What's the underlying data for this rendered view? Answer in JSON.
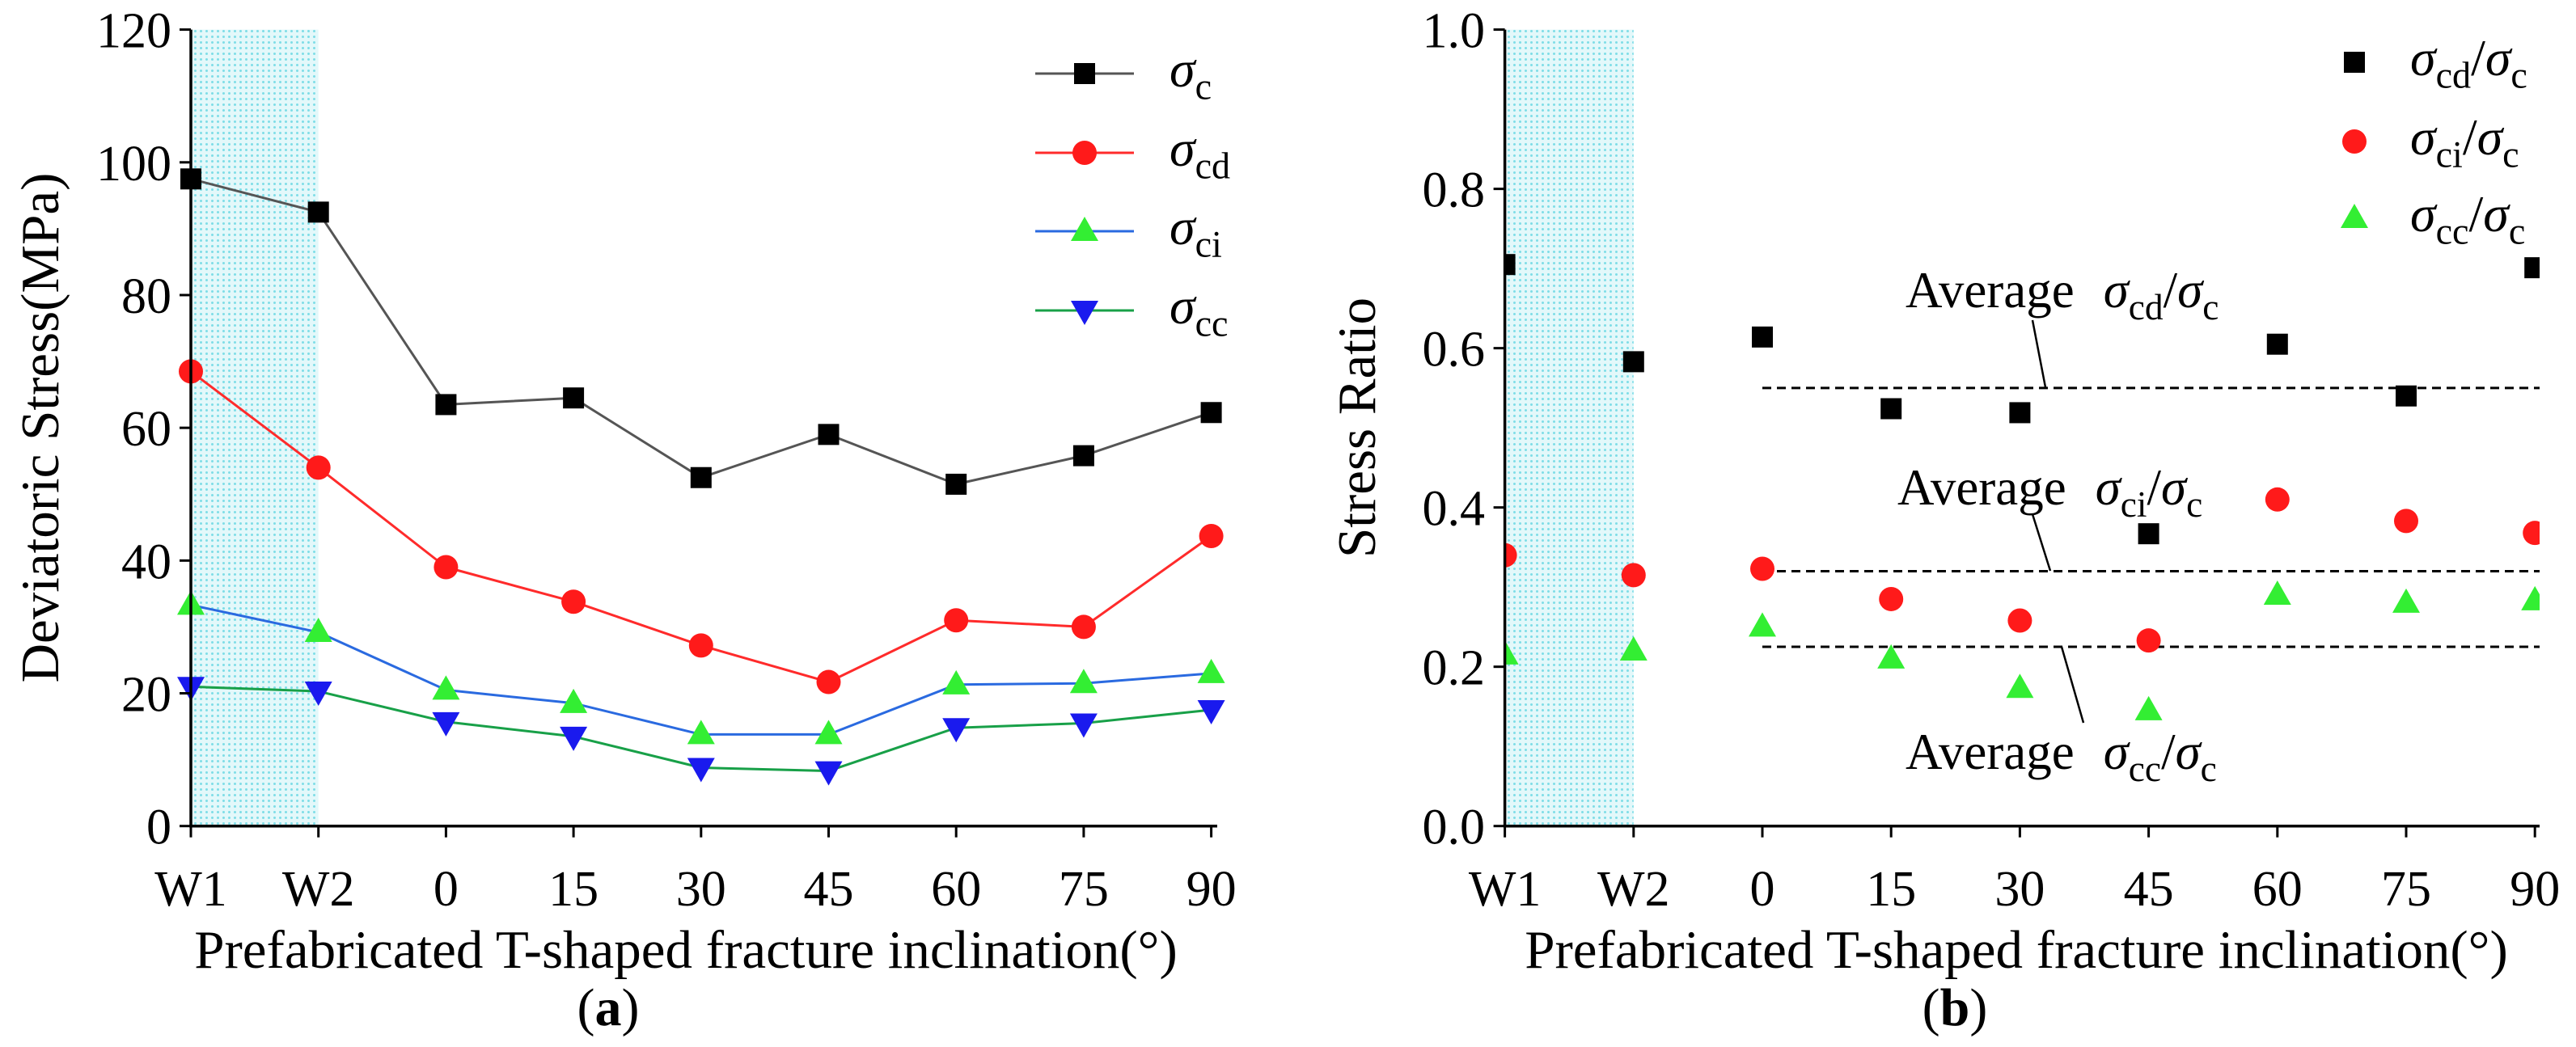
{
  "figure": {
    "background": "#ffffff",
    "axis_color": "#000000",
    "shade_fill": "#e3f8fa",
    "shade_dots": "#7edde7"
  },
  "chart_data": [
    {
      "type": "line",
      "panel_label": {
        "open": "(",
        "letter": "a",
        "close": ")"
      },
      "xlabel": "Prefabricated T-shaped fracture inclination(°)",
      "ylabel": "Deviatoric Stress(MPa)",
      "categories": [
        "W1",
        "W2",
        "0",
        "15",
        "30",
        "45",
        "60",
        "75",
        "90"
      ],
      "ylim": [
        0,
        120
      ],
      "yticks": [
        "0",
        "20",
        "40",
        "60",
        "80",
        "100",
        "120"
      ],
      "shaded_first_n_categories": 2,
      "grid": false,
      "legend_position": "top-right",
      "series": [
        {
          "symbol": "σ",
          "sub": "c",
          "marker": "square",
          "marker_color": "#000000",
          "line_color": "#555555",
          "values": [
            97.5,
            92.5,
            63.5,
            64.5,
            52.5,
            59.0,
            51.5,
            55.8,
            62.3
          ]
        },
        {
          "symbol": "σ",
          "sub": "cd",
          "marker": "circle",
          "marker_color": "#ff1a1a",
          "line_color": "#ff2b2b",
          "values": [
            68.5,
            54.0,
            39.0,
            33.8,
            27.2,
            21.7,
            31.0,
            30.0,
            43.7
          ]
        },
        {
          "symbol": "σ",
          "sub": "ci",
          "marker": "triangle-up",
          "marker_color": "#33ee33",
          "line_color": "#2a6ae0",
          "values": [
            33.3,
            29.2,
            20.5,
            18.5,
            13.8,
            13.8,
            21.3,
            21.5,
            23.0
          ]
        },
        {
          "symbol": "σ",
          "sub": "cc",
          "marker": "triangle-down",
          "marker_color": "#1a1aee",
          "line_color": "#18a048",
          "values": [
            21.0,
            20.3,
            15.7,
            13.5,
            8.8,
            8.3,
            14.8,
            15.5,
            17.5
          ]
        }
      ]
    },
    {
      "type": "scatter",
      "panel_label": {
        "open": "(",
        "letter": "b",
        "close": ")"
      },
      "xlabel": "Prefabricated T-shaped fracture inclination(°)",
      "ylabel": "Stress Ratio",
      "categories": [
        "W1",
        "W2",
        "0",
        "15",
        "30",
        "45",
        "60",
        "75",
        "90"
      ],
      "ylim": [
        0,
        1
      ],
      "yticks": [
        "0.0",
        "0.2",
        "0.4",
        "0.6",
        "0.8",
        "1.0"
      ],
      "shaded_first_n_categories": 2,
      "grid": false,
      "legend_position": "top-right",
      "series": [
        {
          "symbol": "σ",
          "sub": "cd",
          "separator": "/",
          "over_symbol": "σ",
          "over_sub": "c",
          "marker": "square",
          "marker_color": "#000000",
          "values": [
            0.705,
            0.583,
            0.614,
            0.524,
            0.519,
            0.367,
            0.605,
            0.54,
            0.701
          ]
        },
        {
          "symbol": "σ",
          "sub": "ci",
          "separator": "/",
          "over_symbol": "σ",
          "over_sub": "c",
          "marker": "circle",
          "marker_color": "#ff1a1a",
          "values": [
            0.34,
            0.315,
            0.323,
            0.285,
            0.258,
            0.233,
            0.41,
            0.383,
            0.368
          ]
        },
        {
          "symbol": "σ",
          "sub": "cc",
          "separator": "/",
          "over_symbol": "σ",
          "over_sub": "c",
          "marker": "triangle-up",
          "marker_color": "#33ee33",
          "values": [
            0.215,
            0.22,
            0.25,
            0.21,
            0.173,
            0.145,
            0.29,
            0.28,
            0.283
          ]
        }
      ],
      "reference_lines": [
        {
          "prefix": "Average",
          "symbol": "σ",
          "sub": "cd",
          "separator": "/",
          "over_symbol": "σ",
          "over_sub": "c",
          "value": 0.55,
          "x_from": 0,
          "x_to": 90
        },
        {
          "prefix": "Average",
          "symbol": "σ",
          "sub": "ci",
          "separator": "/",
          "over_symbol": "σ",
          "over_sub": "c",
          "value": 0.32,
          "x_from": 0,
          "x_to": 90
        },
        {
          "prefix": "Average",
          "symbol": "σ",
          "sub": "cc",
          "separator": "/",
          "over_symbol": "σ",
          "over_sub": "c",
          "value": 0.225,
          "x_from": 0,
          "x_to": 90
        }
      ]
    }
  ]
}
